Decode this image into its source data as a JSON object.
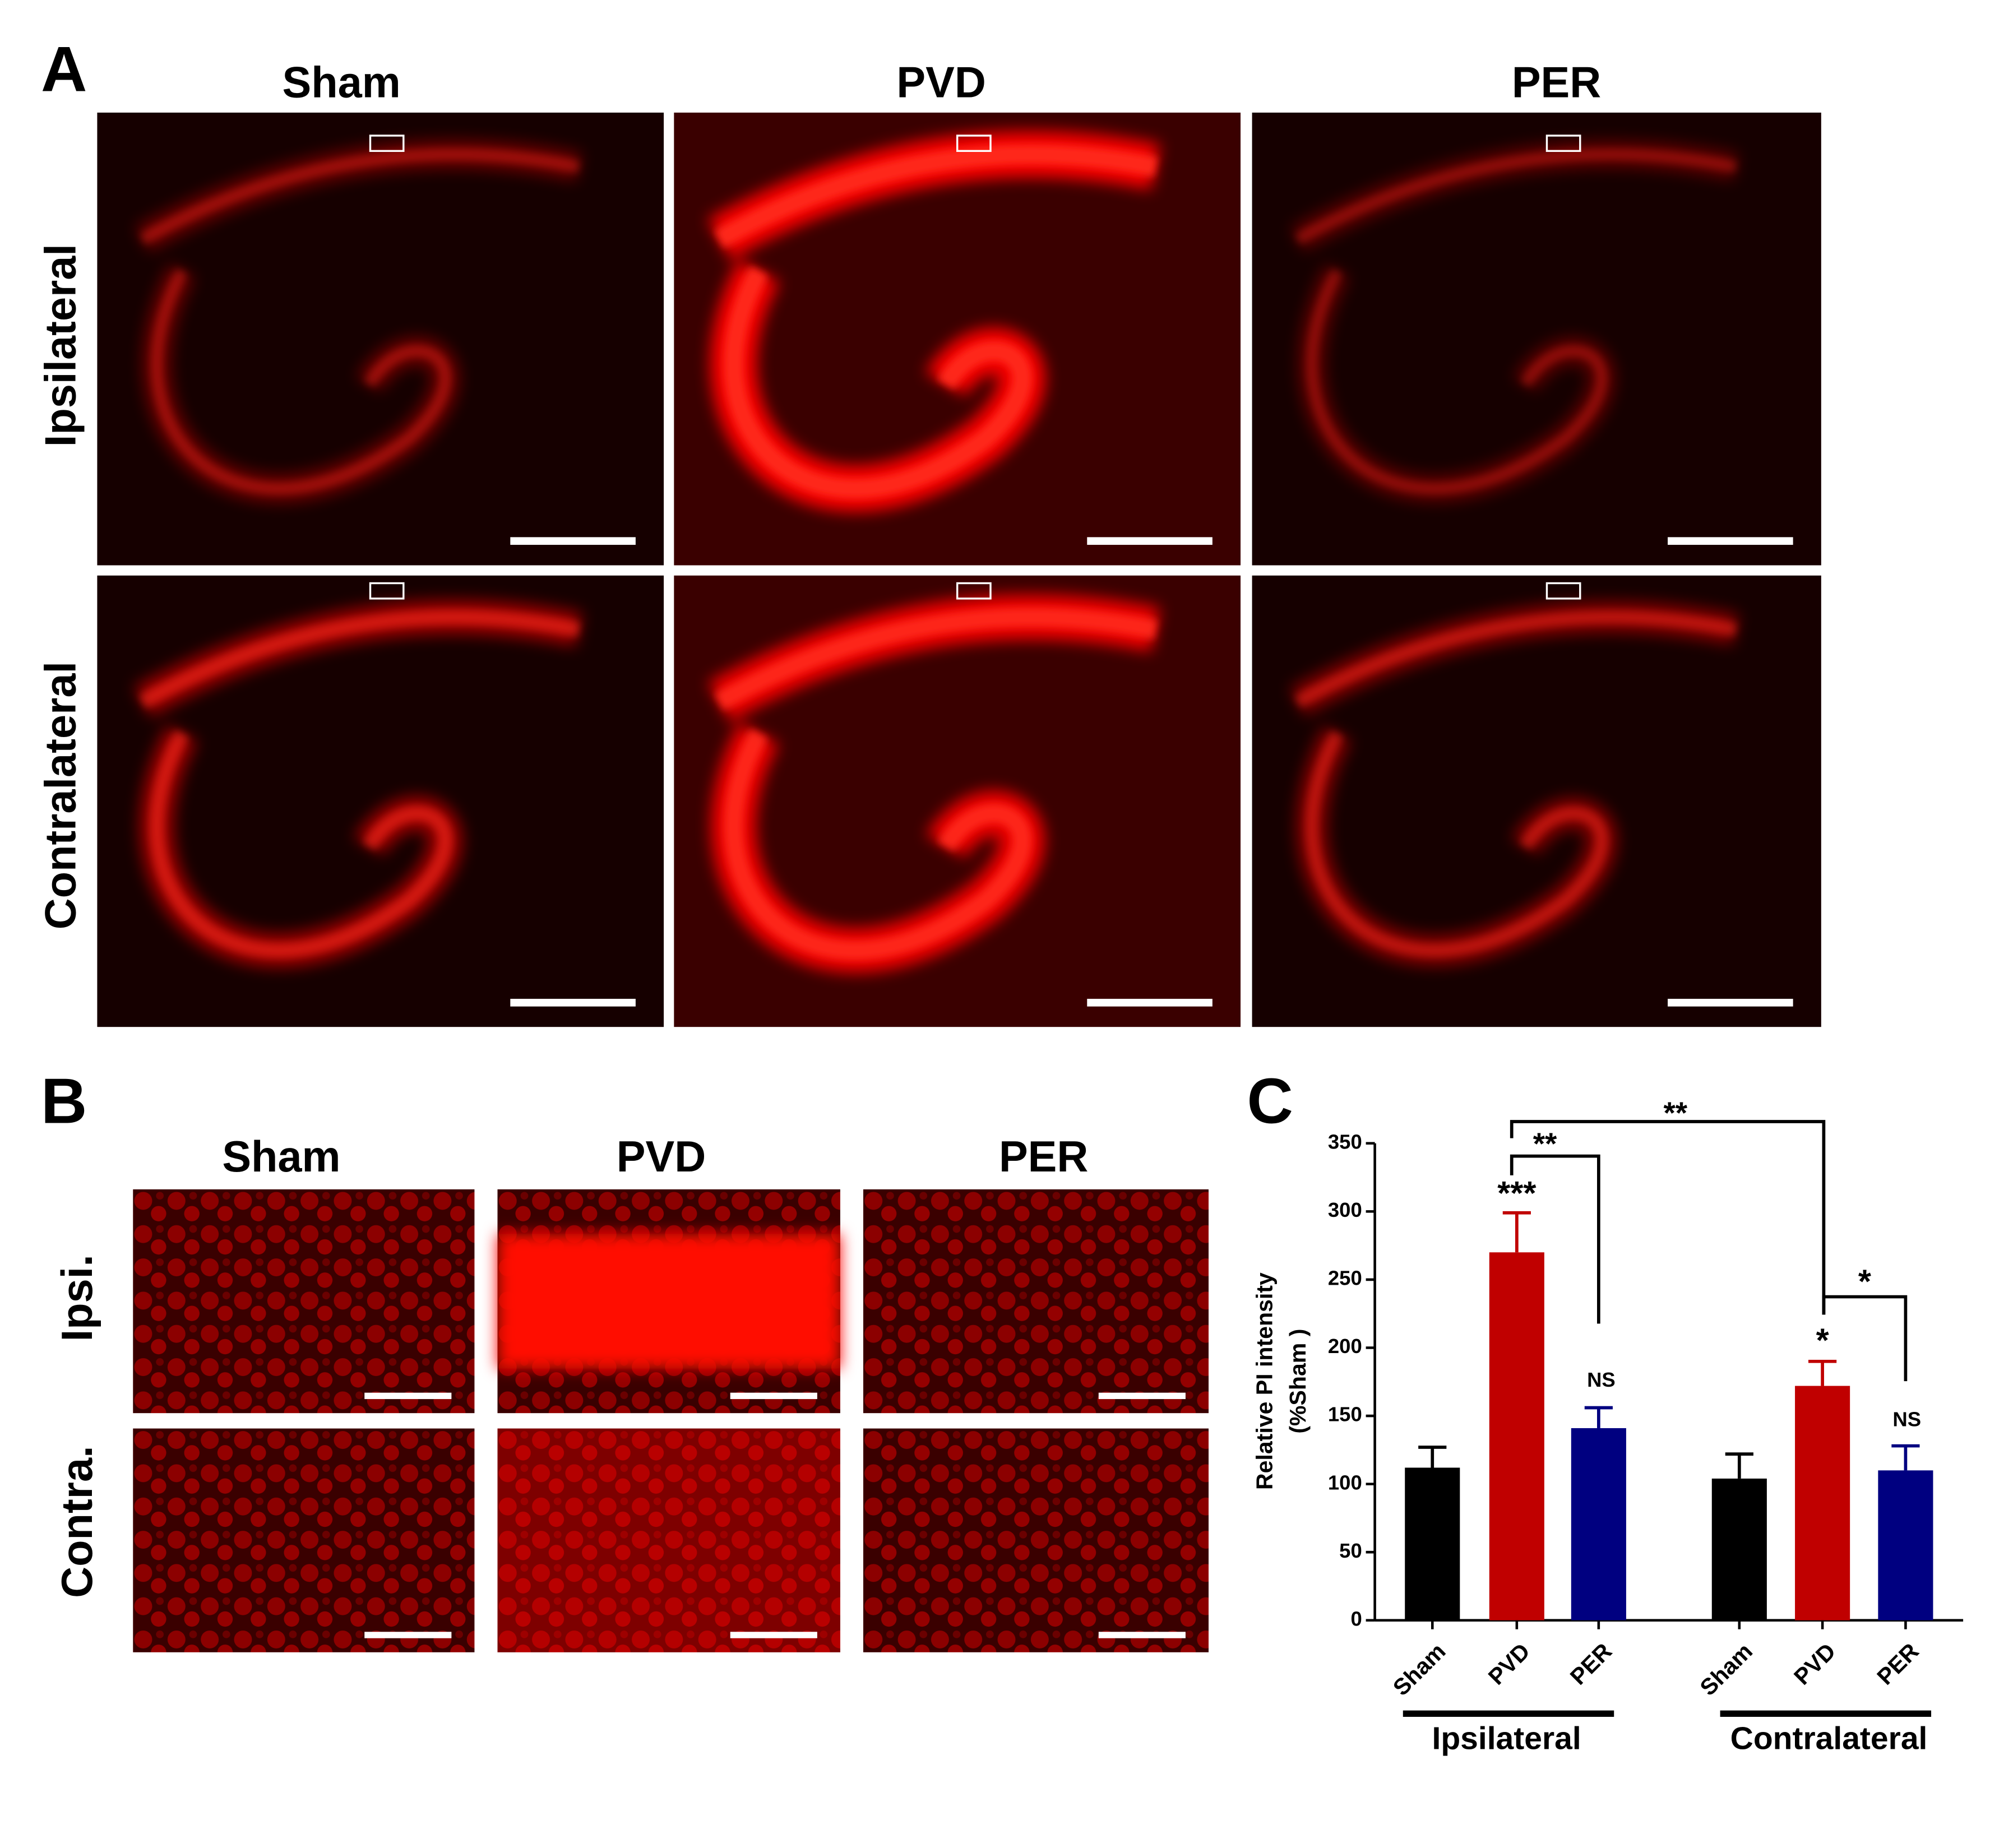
{
  "panel_a": {
    "label": "A",
    "columns": [
      "Sham",
      "PVD",
      "PER"
    ],
    "rows": [
      "Ipsilateral",
      "Contralateral"
    ]
  },
  "panel_b": {
    "label": "B",
    "columns": [
      "Sham",
      "PVD",
      "PER"
    ],
    "rows": [
      "Ipsi.",
      "Contra."
    ]
  },
  "panel_c": {
    "label": "C"
  },
  "chart_data": {
    "type": "bar",
    "categories": [
      "Sham",
      "PVD",
      "PER",
      "Sham",
      "PVD",
      "PER"
    ],
    "groups": [
      "Ipsilateral",
      "Contralateral"
    ],
    "values": [
      112,
      270,
      141,
      104,
      172,
      110
    ],
    "errors": [
      15,
      29,
      15,
      18,
      18,
      18
    ],
    "colors": [
      "#000000",
      "#c00000",
      "#000080",
      "#000000",
      "#c00000",
      "#000080"
    ],
    "y_label": "Relative PI intensity",
    "y_label_2": "(%Sham )",
    "ylim": [
      0,
      350
    ],
    "yticks": [
      0,
      50,
      100,
      150,
      200,
      250,
      300,
      350
    ],
    "annotations": [
      "***",
      "NS",
      "*",
      "NS",
      "**",
      "**",
      "*"
    ]
  }
}
